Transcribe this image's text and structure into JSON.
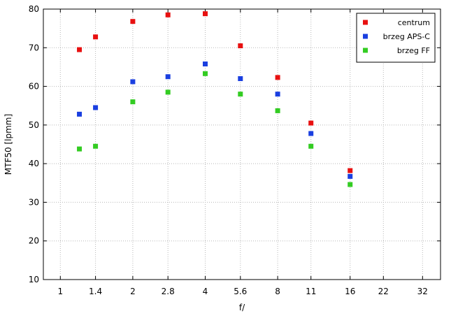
{
  "chart_data": {
    "type": "scatter",
    "title": "",
    "xlabel": "f/",
    "ylabel": "MTF50 [lpmm]",
    "x_scale": "log2",
    "xlim": [
      0.85,
      38
    ],
    "ylim": [
      10,
      80
    ],
    "x_ticks": [
      {
        "value": 1,
        "label": "1"
      },
      {
        "value": 1.4,
        "label": "1.4"
      },
      {
        "value": 2,
        "label": "2"
      },
      {
        "value": 2.8,
        "label": "2.8"
      },
      {
        "value": 4,
        "label": "4"
      },
      {
        "value": 5.6,
        "label": "5.6"
      },
      {
        "value": 8,
        "label": "8"
      },
      {
        "value": 11,
        "label": "11"
      },
      {
        "value": 16,
        "label": "16"
      },
      {
        "value": 22,
        "label": "22"
      },
      {
        "value": 32,
        "label": "32"
      }
    ],
    "y_ticks": [
      10,
      20,
      30,
      40,
      50,
      60,
      70,
      80
    ],
    "grid": true,
    "legend_position": "top-right",
    "series": [
      {
        "name": "centrum",
        "color": "#e81010",
        "points": [
          {
            "x": 1.2,
            "y": 69.5
          },
          {
            "x": 1.4,
            "y": 72.8
          },
          {
            "x": 2,
            "y": 76.8
          },
          {
            "x": 2.8,
            "y": 78.5
          },
          {
            "x": 4,
            "y": 78.8
          },
          {
            "x": 5.6,
            "y": 70.5
          },
          {
            "x": 8,
            "y": 62.3
          },
          {
            "x": 11,
            "y": 50.5
          },
          {
            "x": 16,
            "y": 38.2
          }
        ]
      },
      {
        "name": "brzeg APS-C",
        "color": "#1a3fe0",
        "points": [
          {
            "x": 1.2,
            "y": 52.8
          },
          {
            "x": 1.4,
            "y": 54.5
          },
          {
            "x": 2,
            "y": 61.2
          },
          {
            "x": 2.8,
            "y": 62.5
          },
          {
            "x": 4,
            "y": 65.8
          },
          {
            "x": 5.6,
            "y": 62.0
          },
          {
            "x": 8,
            "y": 58.0
          },
          {
            "x": 11,
            "y": 47.8
          },
          {
            "x": 16,
            "y": 36.7
          }
        ]
      },
      {
        "name": "brzeg FF",
        "color": "#33cc22",
        "points": [
          {
            "x": 1.2,
            "y": 43.8
          },
          {
            "x": 1.4,
            "y": 44.5
          },
          {
            "x": 2,
            "y": 56.0
          },
          {
            "x": 2.8,
            "y": 58.5
          },
          {
            "x": 4,
            "y": 63.3
          },
          {
            "x": 5.6,
            "y": 58.0
          },
          {
            "x": 8,
            "y": 53.7
          },
          {
            "x": 11,
            "y": 44.5
          },
          {
            "x": 16,
            "y": 34.6
          }
        ]
      }
    ]
  }
}
